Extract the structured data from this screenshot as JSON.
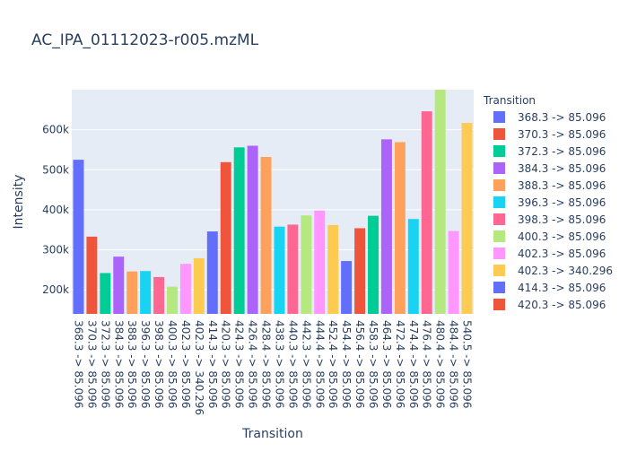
{
  "chart_data": {
    "type": "bar",
    "title": "AC_IPA_01112023-r005.mzML",
    "xlabel": "Transition",
    "ylabel": "Intensity",
    "legend_title": "Transition",
    "legend_position": "right",
    "grid": true,
    "ylim": [
      140000,
      700000
    ],
    "yticks": [
      200000,
      300000,
      400000,
      500000,
      600000
    ],
    "ytick_labels": [
      "200k",
      "300k",
      "400k",
      "500k",
      "600k"
    ],
    "colors": [
      "#636efa",
      "#ef553b",
      "#00cc96",
      "#ab63fa",
      "#ffa15a",
      "#19d3f3",
      "#ff6692",
      "#b6e880",
      "#ff97ff",
      "#fecb52"
    ],
    "legend_entries": [
      "368.3 -> 85.096",
      "370.3 -> 85.096",
      "372.3 -> 85.096",
      "384.3 -> 85.096",
      "388.3 -> 85.096",
      "396.3 -> 85.096",
      "398.3 -> 85.096",
      "400.3 -> 85.096",
      "402.3 -> 85.096",
      "402.3 -> 340.296",
      "414.3 -> 85.096",
      "420.3 -> 85.096"
    ],
    "categories": [
      "368.3 -> 85.096",
      "370.3 -> 85.096",
      "372.3 -> 85.096",
      "384.3 -> 85.096",
      "388.3 -> 85.096",
      "396.3 -> 85.096",
      "398.3 -> 85.096",
      "400.3 -> 85.096",
      "402.3 -> 85.096",
      "402.3 -> 340.296",
      "414.3 -> 85.096",
      "420.3 -> 85.096",
      "424.3 -> 85.096",
      "426.4 -> 85.096",
      "428.4 -> 85.096",
      "438.3 -> 85.096",
      "440.3 -> 85.096",
      "442.3 -> 85.096",
      "444.4 -> 85.096",
      "452.4 -> 85.096",
      "454.4 -> 85.096",
      "456.4 -> 85.096",
      "458.3 -> 85.096",
      "464.3 -> 85.096",
      "472.4 -> 85.096",
      "474.4 -> 85.096",
      "476.4 -> 85.096",
      "480.4 -> 85.096",
      "484.4 -> 85.096",
      "540.5 -> 85.096"
    ],
    "values": [
      525000,
      333000,
      242000,
      283000,
      246000,
      247000,
      232000,
      208000,
      265000,
      279000,
      346000,
      519000,
      556000,
      560000,
      532000,
      358000,
      363000,
      386000,
      398000,
      362000,
      272000,
      354000,
      385000,
      576000,
      569000,
      377000,
      646000,
      700000,
      347000,
      617000
    ]
  }
}
